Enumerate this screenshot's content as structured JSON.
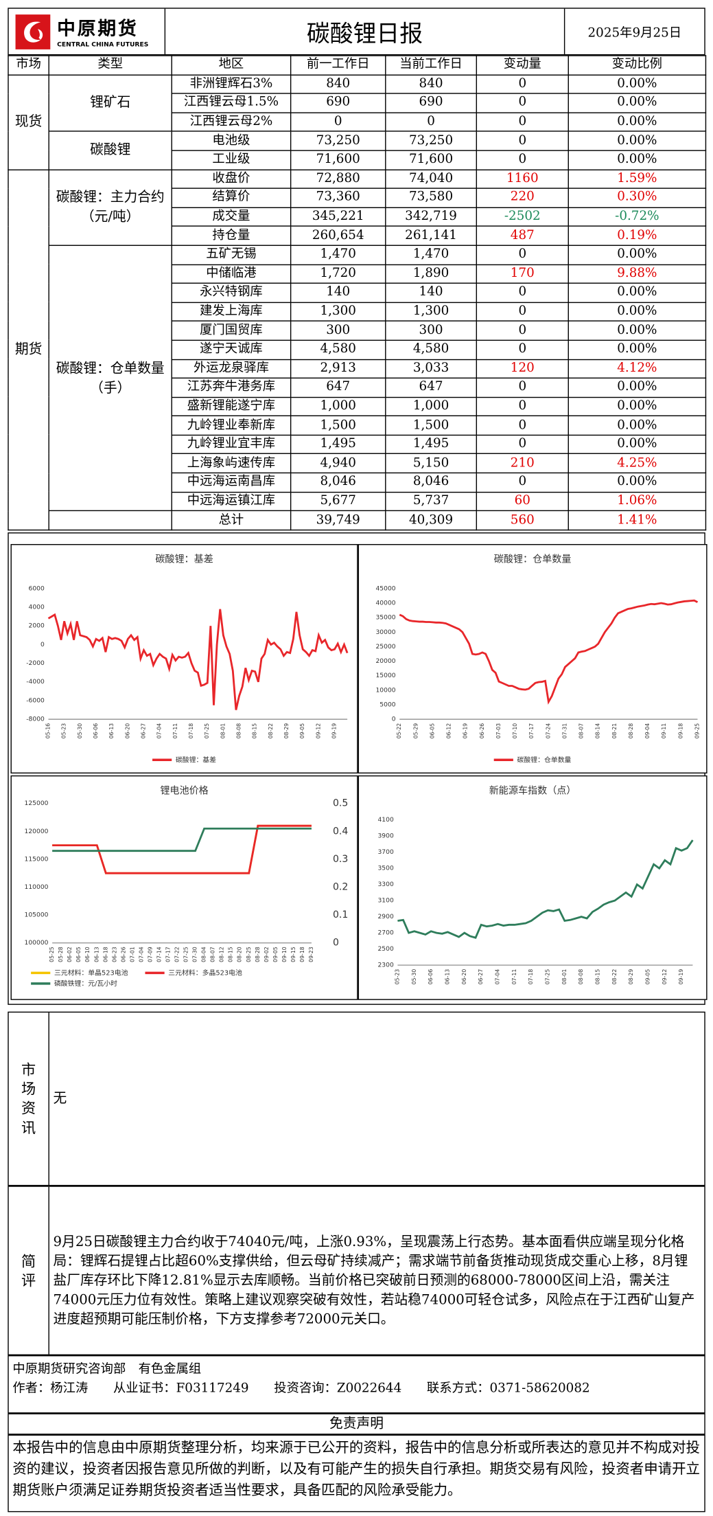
{
  "header": {
    "logo_cn": "中原期货",
    "logo_en": "CENTRAL CHINA FUTURES",
    "title": "碳酸锂日报",
    "date": "2025年9月25日"
  },
  "table": {
    "header": [
      "市场",
      "类型",
      "地区",
      "前一工作日",
      "当前工作日",
      "变动量",
      "变动比例"
    ],
    "markets": [
      {
        "name": "现货",
        "types": [
          {
            "name": "锂矿石",
            "rows": [
              [
                "非洲锂辉石3%",
                "840",
                "840",
                "0",
                "0.00%"
              ],
              [
                "江西锂云母1.5%",
                "690",
                "690",
                "0",
                "0.00%"
              ],
              [
                "江西锂云母2%",
                "0",
                "0",
                "0",
                "0.00%"
              ]
            ]
          },
          {
            "name": "碳酸锂",
            "rows": [
              [
                "电池级",
                "73,250",
                "73,250",
                "0",
                "0.00%"
              ],
              [
                "工业级",
                "71,600",
                "71,600",
                "0",
                "0.00%"
              ]
            ]
          }
        ]
      },
      {
        "name": "期货",
        "types": [
          {
            "name": "碳酸锂：主力合约（元/吨）",
            "rows": [
              [
                "收盘价",
                "72,880",
                "74,040",
                "1160",
                "1.59%"
              ],
              [
                "结算价",
                "73,360",
                "73,580",
                "220",
                "0.30%"
              ],
              [
                "成交量",
                "345,221",
                "342,719",
                "-2502",
                "-0.72%"
              ],
              [
                "持仓量",
                "260,654",
                "261,141",
                "487",
                "0.19%"
              ]
            ]
          },
          {
            "name": "碳酸锂：仓单数量（手）",
            "rows": [
              [
                "五矿无锡",
                "1,470",
                "1,470",
                "0",
                "0.00%"
              ],
              [
                "中储临港",
                "1,720",
                "1,890",
                "170",
                "9.88%"
              ],
              [
                "永兴特钢库",
                "140",
                "140",
                "0",
                "0.00%"
              ],
              [
                "建发上海库",
                "1,300",
                "1,300",
                "0",
                "0.00%"
              ],
              [
                "厦门国贸库",
                "300",
                "300",
                "0",
                "0.00%"
              ],
              [
                "遂宁天诚库",
                "4,580",
                "4,580",
                "0",
                "0.00%"
              ],
              [
                "外运龙泉驿库",
                "2,913",
                "3,033",
                "120",
                "4.12%"
              ],
              [
                "江苏奔牛港务库",
                "647",
                "647",
                "0",
                "0.00%"
              ],
              [
                "盛新锂能遂宁库",
                "1,000",
                "1,000",
                "0",
                "0.00%"
              ],
              [
                "九岭锂业奉新库",
                "1,500",
                "1,500",
                "0",
                "0.00%"
              ],
              [
                "九岭锂业宜丰库",
                "1,495",
                "1,495",
                "0",
                "0.00%"
              ],
              [
                "上海象屿速传库",
                "4,940",
                "5,150",
                "210",
                "4.25%"
              ],
              [
                "中远海运南昌库",
                "8,046",
                "8,046",
                "0",
                "0.00%"
              ],
              [
                "中远海运镇江库",
                "5,677",
                "5,737",
                "60",
                "1.06%"
              ]
            ]
          }
        ],
        "total": [
          "总计",
          "39,749",
          "40,309",
          "560",
          "1.41%"
        ]
      }
    ]
  },
  "chart_data": [
    {
      "type": "line",
      "title": "碳酸锂：基差",
      "grid": false,
      "legend": "bottom",
      "categories": [
        "05-16",
        null,
        null,
        null,
        null,
        "05-23",
        null,
        null,
        null,
        null,
        "05-30",
        null,
        null,
        null,
        null,
        "06-06",
        null,
        null,
        null,
        null,
        "06-13",
        null,
        null,
        null,
        null,
        "06-20",
        null,
        null,
        null,
        null,
        "06-27",
        null,
        null,
        null,
        null,
        "07-04",
        null,
        null,
        null,
        null,
        "07-11",
        null,
        null,
        null,
        null,
        "07-18",
        null,
        null,
        null,
        null,
        "07-25",
        null,
        null,
        null,
        null,
        "08-01",
        null,
        null,
        null,
        null,
        "08-08",
        null,
        null,
        null,
        null,
        "08-15",
        null,
        null,
        null,
        null,
        "08-22",
        null,
        null,
        null,
        null,
        "08-29",
        null,
        null,
        null,
        null,
        "09-05",
        null,
        null,
        null,
        null,
        "09-12",
        null,
        null,
        null,
        null,
        "09-19",
        null,
        null,
        null,
        null
      ],
      "ylim": [
        -8000,
        6000
      ],
      "yticks": [
        -8000,
        -6000,
        -4000,
        -2000,
        0,
        2000,
        4000,
        6000
      ],
      "series": [
        {
          "name": "碳酸锂：基差",
          "color": "#e8262a",
          "values": [
            2800,
            3000,
            3200,
            2000,
            500,
            2500,
            1200,
            2200,
            500,
            2500,
            1000,
            900,
            800,
            500,
            -200,
            600,
            400,
            700,
            -800,
            800,
            600,
            700,
            600,
            400,
            -300,
            600,
            1000,
            500,
            800,
            -1500,
            -600,
            -1200,
            -1000,
            -2200,
            -1500,
            -1000,
            -1300,
            -1500,
            -2600,
            -1100,
            -1700,
            -1300,
            -1400,
            -1300,
            -900,
            -2000,
            -2800,
            -3000,
            -4400,
            -4300,
            -4100,
            2000,
            -6500,
            0,
            3800,
            1000,
            -200,
            -1000,
            -2800,
            -7000,
            -5500,
            -4500,
            -2500,
            -3800,
            -2800,
            -2900,
            -4000,
            -1500,
            -1000,
            500,
            0,
            200,
            -200,
            -500,
            -1200,
            -800,
            -900,
            600,
            3500,
            1000,
            -500,
            -800,
            -1200,
            -600,
            -700,
            1000,
            200,
            500,
            -300,
            -600,
            -500,
            100,
            -800,
            0,
            -900
          ]
        }
      ]
    },
    {
      "type": "line",
      "title": "碳酸锂：仓单数量",
      "grid": false,
      "legend": "bottom",
      "categories": [
        "05-22",
        null,
        null,
        null,
        null,
        "05-29",
        null,
        null,
        null,
        null,
        "06-05",
        null,
        null,
        null,
        null,
        "06-12",
        null,
        null,
        null,
        null,
        "06-19",
        null,
        null,
        null,
        null,
        "06-26",
        null,
        null,
        null,
        null,
        "07-03",
        null,
        null,
        null,
        null,
        "07-10",
        null,
        null,
        null,
        null,
        "07-17",
        null,
        null,
        null,
        null,
        "07-24",
        null,
        null,
        null,
        null,
        "07-31",
        null,
        null,
        null,
        null,
        "08-07",
        null,
        null,
        null,
        null,
        "08-14",
        null,
        null,
        null,
        null,
        "08-21",
        null,
        null,
        null,
        null,
        "08-28",
        null,
        null,
        null,
        null,
        "09-04",
        null,
        null,
        null,
        null,
        "09-11",
        null,
        null,
        null,
        null,
        "09-18",
        null,
        null,
        null,
        null,
        "09-25"
      ],
      "ylim": [
        0,
        45000
      ],
      "yticks": [
        0,
        5000,
        10000,
        15000,
        20000,
        25000,
        30000,
        35000,
        40000,
        45000
      ],
      "series": [
        {
          "name": "碳酸锂：仓单数量",
          "color": "#e8262a",
          "values": [
            36000,
            35500,
            34500,
            34000,
            33800,
            33700,
            33600,
            33600,
            33500,
            33500,
            33400,
            33300,
            33300,
            33200,
            33000,
            32500,
            32000,
            31500,
            31000,
            30000,
            28000,
            26000,
            22500,
            22300,
            22500,
            23000,
            22500,
            20000,
            17000,
            16000,
            13000,
            12500,
            12000,
            11500,
            11500,
            11000,
            10500,
            10300,
            10200,
            10500,
            11500,
            12500,
            12800,
            12900,
            13200,
            6000,
            8000,
            11000,
            14000,
            15500,
            18000,
            19000,
            20000,
            21000,
            23000,
            23300,
            23500,
            24000,
            24500,
            25000,
            26000,
            28000,
            30000,
            31500,
            33000,
            35000,
            36500,
            37000,
            37500,
            38000,
            38200,
            38500,
            38800,
            39000,
            39200,
            39500,
            39700,
            39600,
            39800,
            40000,
            39800,
            39500,
            39600,
            39900,
            40200,
            40400,
            40600,
            40700,
            40800,
            40900,
            40309
          ]
        }
      ]
    },
    {
      "type": "line",
      "title": "锂电池价格",
      "grid": false,
      "legend": "bottom",
      "categories": [
        "05-25",
        "05-28",
        "06-02",
        "06-05",
        "06-10",
        "06-13",
        "06-18",
        "06-23",
        "06-26",
        "07-01",
        "07-04",
        "07-09",
        "07-14",
        "07-17",
        "07-22",
        "07-25",
        "07-30",
        "08-04",
        "08-07",
        "08-12",
        "08-15",
        "08-20",
        "08-25",
        "08-28",
        "09-02",
        "09-05",
        "09-10",
        "09-15",
        "09-18",
        "09-23"
      ],
      "ylim": [
        100000,
        125000
      ],
      "yticks": [
        100000,
        105000,
        110000,
        115000,
        120000,
        125000
      ],
      "y2lim": [
        0,
        0.5
      ],
      "y2ticks": [
        0,
        0.1,
        0.2,
        0.3,
        0.4,
        0.5
      ],
      "series": [
        {
          "name": "三元材料：单晶523电池",
          "color": "#f5c400",
          "axis": "y2",
          "values": [
            0.35,
            0.35,
            0.35,
            0.35,
            0.35,
            0.35,
            0.25,
            0.25,
            0.25,
            0.25,
            0.25,
            0.25,
            0.25,
            0.25,
            0.25,
            0.25,
            0.25,
            0.25,
            0.25,
            0.25,
            0.25,
            0.25,
            0.25,
            0.42,
            0.42,
            0.42,
            0.42,
            0.42,
            0.42,
            0.42
          ]
        },
        {
          "name": "三元材料：多晶523电池",
          "color": "#e8262a",
          "axis": "y2",
          "values": [
            0.35,
            0.35,
            0.35,
            0.35,
            0.35,
            0.35,
            0.25,
            0.25,
            0.25,
            0.25,
            0.25,
            0.25,
            0.25,
            0.25,
            0.25,
            0.25,
            0.25,
            0.25,
            0.25,
            0.25,
            0.25,
            0.25,
            0.25,
            0.42,
            0.42,
            0.42,
            0.42,
            0.42,
            0.42,
            0.42
          ]
        },
        {
          "name": "磷酸铁锂：元/瓦小时",
          "color": "#2e7d5b",
          "axis": "y2",
          "values": [
            0.33,
            0.33,
            0.33,
            0.33,
            0.33,
            0.33,
            0.33,
            0.33,
            0.33,
            0.33,
            0.33,
            0.33,
            0.33,
            0.33,
            0.33,
            0.33,
            0.33,
            0.41,
            0.41,
            0.41,
            0.41,
            0.41,
            0.41,
            0.41,
            0.41,
            0.41,
            0.41,
            0.41,
            0.41,
            0.41
          ]
        }
      ]
    },
    {
      "type": "line",
      "title": "新能源车指数（点）",
      "grid": false,
      "legend": "none",
      "color": "#2e7d5b",
      "categories": [
        "05-23",
        null,
        null,
        "05-30",
        null,
        null,
        "06-06",
        null,
        null,
        "06-13",
        null,
        null,
        "06-20",
        null,
        null,
        "06-27",
        null,
        null,
        "07-04",
        null,
        null,
        "07-11",
        null,
        null,
        "07-18",
        null,
        null,
        "07-25",
        null,
        null,
        "08-01",
        null,
        null,
        "08-08",
        null,
        null,
        "08-15",
        null,
        null,
        "08-22",
        null,
        null,
        "08-29",
        null,
        null,
        "09-05",
        null,
        null,
        "09-12",
        null,
        null,
        "09-19",
        null,
        null
      ],
      "ylim": [
        2300,
        4100
      ],
      "yticks": [
        2300,
        2500,
        2700,
        2900,
        3100,
        3300,
        3500,
        3700,
        3900,
        4100
      ],
      "values": [
        2850,
        2860,
        2700,
        2720,
        2700,
        2680,
        2720,
        2700,
        2690,
        2710,
        2680,
        2650,
        2700,
        2660,
        2640,
        2800,
        2780,
        2790,
        2810,
        2790,
        2800,
        2800,
        2810,
        2820,
        2850,
        2900,
        2950,
        2980,
        2970,
        2990,
        2850,
        2860,
        2880,
        2900,
        2880,
        2960,
        3000,
        3050,
        3080,
        3100,
        3150,
        3200,
        3150,
        3300,
        3250,
        3400,
        3550,
        3500,
        3600,
        3550,
        3750,
        3720,
        3750,
        3850
      ]
    }
  ],
  "market_info": {
    "label": "市场资讯",
    "content": "无"
  },
  "review": {
    "label": "简评",
    "content": "9月25日碳酸锂主力合约收于74040元/吨，上涨0.93%，呈现震荡上行态势。基本面看供应端呈现分化格局：锂辉石提锂占比超60%支撑供给，但云母矿持续减产；需求端节前备货推动现货成交重心上移，8月锂盐厂库存环比下降12.81%显示去库顺畅。当前价格已突破前日预测的68000-78000区间上沿，需关注74000元压力位有效性。策略上建议观察突破有效性，若站稳74000可轻仓试多，风险点在于江西矿山复产进度超预期可能压制价格，下方支撑参考72000元关口。"
  },
  "footer": {
    "department": "中原期货研究咨询部　有色金属组",
    "author": "作者：杨江涛　　从业证书：F03117249　　投资咨询：Z0022644　　联系方式：0371-58620082"
  },
  "disclaimer": {
    "title": "免责声明",
    "text": "本报告中的信息由中原期货整理分析，均来源于已公开的资料，报告中的信息分析或所表达的意见并不构成对投资的建议，投资者因报告意见所做的判断，以及有可能产生的损失自行承担。期货交易有风险，投资者申请开立期货账户须满足证券期货投资者适当性要求，具备匹配的风险承受能力。"
  }
}
